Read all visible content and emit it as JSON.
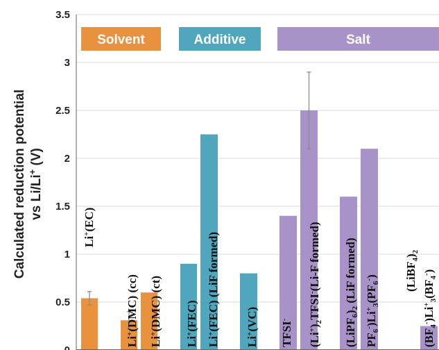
{
  "chart_data": {
    "type": "bar",
    "ylabel_line1": "Calculated reduction potential",
    "ylabel_line2_pre": "vs Li/Li",
    "ylabel_line2_sup": "+",
    "ylabel_line2_post": " (V)",
    "ylim": [
      0,
      3.5
    ],
    "yticks": [
      "0",
      "0.5",
      "1",
      "1.5",
      "2",
      "2.5",
      "3",
      "3.5"
    ],
    "grid": true,
    "colors": {
      "solvent": "#E8913F",
      "additive": "#4FA6BD",
      "salt": "#A793C7",
      "grid": "#d9d9d9",
      "axis": "#666666"
    },
    "groups": [
      {
        "key": "solvent",
        "name": "Solvent"
      },
      {
        "key": "additive",
        "name": "Additive"
      },
      {
        "key": "salt",
        "name": "Salt"
      }
    ],
    "bars": [
      {
        "group": "solvent",
        "value": 0.54,
        "err": 0.07,
        "label": [
          {
            "t": "Li"
          },
          {
            "t": "+",
            "sup": true
          },
          {
            "t": "(EC)"
          }
        ]
      },
      {
        "group": "solvent",
        "value": 0.31,
        "err": 0.09,
        "label": [
          {
            "t": "Li"
          },
          {
            "t": "+",
            "sup": true
          },
          {
            "t": "(DMC) (cc)"
          }
        ]
      },
      {
        "group": "solvent",
        "value": 0.6,
        "label": [
          {
            "t": "Li"
          },
          {
            "t": "+",
            "sup": true
          },
          {
            "t": "(DMC) (ct)"
          }
        ]
      },
      {
        "group": "additive",
        "value": 0.9,
        "label": [
          {
            "t": "Li"
          },
          {
            "t": "+",
            "sup": true
          },
          {
            "t": "(FEC)"
          }
        ]
      },
      {
        "group": "additive",
        "value": 2.25,
        "label": [
          {
            "t": "Li"
          },
          {
            "t": "+",
            "sup": true
          },
          {
            "t": "(FEC) (LiF formed)"
          }
        ]
      },
      {
        "group": "additive",
        "value": 0.8,
        "label": [
          {
            "t": "Li"
          },
          {
            "t": "+",
            "sup": true
          },
          {
            "t": "(VC)"
          }
        ]
      },
      {
        "group": "salt",
        "value": 1.4,
        "label": [
          {
            "t": "TFSI"
          },
          {
            "t": "-",
            "sup": true
          }
        ]
      },
      {
        "group": "salt",
        "value": 2.5,
        "err": 0.4,
        "label": [
          {
            "t": "(Li"
          },
          {
            "t": "+",
            "sup": true
          },
          {
            "t": ")"
          },
          {
            "t": "2",
            "sub": true
          },
          {
            "t": "TFSI"
          },
          {
            "t": "-",
            "sup": true
          },
          {
            "t": "(Li-F formed)"
          }
        ]
      },
      {
        "group": "salt",
        "value": 1.6,
        "label": [
          {
            "t": "(LiPF"
          },
          {
            "t": "6",
            "sub": true
          },
          {
            "t": ")"
          },
          {
            "t": "2",
            "sub": true
          },
          {
            "t": " (LiF formed)"
          }
        ]
      },
      {
        "group": "salt",
        "value": 2.1,
        "label": [
          {
            "t": "PF"
          },
          {
            "t": "6",
            "sub": true
          },
          {
            "t": "-",
            "sup": true
          },
          {
            "t": ")Li"
          },
          {
            "t": "+",
            "sup": true
          },
          {
            "t": "3",
            "sub": true
          },
          {
            "t": "(PF"
          },
          {
            "t": "6",
            "sub": true
          },
          {
            "t": "-",
            "sup": true
          },
          {
            "t": ")"
          }
        ]
      },
      {
        "group": "salt",
        "value": 0.25,
        "label": [
          {
            "t": "(LiBF"
          },
          {
            "t": "4",
            "sub": true
          },
          {
            "t": ")"
          },
          {
            "t": "2",
            "sub": true
          }
        ],
        "label2": [
          {
            "t": "(BF"
          },
          {
            "t": "4",
            "sub": true
          },
          {
            "t": "-",
            "sup": true
          },
          {
            "t": ")Li"
          },
          {
            "t": "+",
            "sup": true
          },
          {
            "t": "3",
            "sub": true
          },
          {
            "t": "(BF"
          },
          {
            "t": "4",
            "sub": true
          },
          {
            "t": "-",
            "sup": true
          },
          {
            "t": ")"
          }
        ]
      }
    ]
  }
}
